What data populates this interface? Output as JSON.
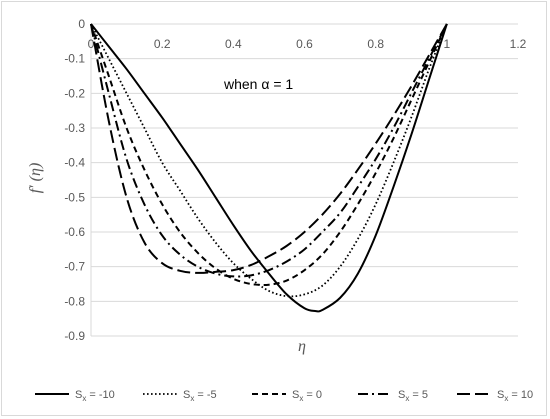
{
  "chart_data": {
    "type": "line",
    "title": "",
    "annotation": "when α = 1",
    "xlabel": "η",
    "ylabel": "f′ (η)",
    "xlim": [
      0,
      1.2
    ],
    "ylim": [
      -0.9,
      0
    ],
    "xticks": [
      "0",
      "0.2",
      "0.4",
      "0.6",
      "0.8",
      "1",
      "1.2"
    ],
    "yticks": [
      "0",
      "-0.1",
      "-0.2",
      "-0.3",
      "-0.4",
      "-0.5",
      "-0.6",
      "-0.7",
      "-0.8",
      "-0.9"
    ],
    "grid": "horizontal",
    "legend_position": "bottom",
    "series": [
      {
        "name": "Sx = -10",
        "style": "solid",
        "x": [
          0,
          0.05,
          0.1,
          0.15,
          0.2,
          0.25,
          0.3,
          0.35,
          0.4,
          0.45,
          0.5,
          0.55,
          0.6,
          0.63,
          0.65,
          0.7,
          0.75,
          0.8,
          0.85,
          0.9,
          0.95,
          1.0
        ],
        "y": [
          0,
          -0.065,
          -0.13,
          -0.2,
          -0.27,
          -0.345,
          -0.42,
          -0.5,
          -0.58,
          -0.655,
          -0.72,
          -0.78,
          -0.82,
          -0.828,
          -0.825,
          -0.79,
          -0.72,
          -0.61,
          -0.47,
          -0.32,
          -0.16,
          0
        ]
      },
      {
        "name": "Sx = -5",
        "style": "dotted",
        "x": [
          0,
          0.05,
          0.1,
          0.15,
          0.2,
          0.25,
          0.3,
          0.35,
          0.4,
          0.45,
          0.5,
          0.55,
          0.6,
          0.65,
          0.7,
          0.75,
          0.8,
          0.85,
          0.9,
          0.95,
          1.0
        ],
        "y": [
          0,
          -0.1,
          -0.2,
          -0.3,
          -0.4,
          -0.48,
          -0.56,
          -0.63,
          -0.69,
          -0.735,
          -0.77,
          -0.785,
          -0.78,
          -0.755,
          -0.7,
          -0.62,
          -0.52,
          -0.4,
          -0.27,
          -0.13,
          0
        ]
      },
      {
        "name": "Sx = 0",
        "style": "dashed",
        "x": [
          0,
          0.05,
          0.1,
          0.15,
          0.2,
          0.25,
          0.3,
          0.35,
          0.4,
          0.45,
          0.5,
          0.55,
          0.6,
          0.65,
          0.7,
          0.75,
          0.8,
          0.85,
          0.9,
          0.95,
          1.0
        ],
        "y": [
          0,
          -0.15,
          -0.3,
          -0.42,
          -0.52,
          -0.6,
          -0.66,
          -0.705,
          -0.735,
          -0.75,
          -0.752,
          -0.74,
          -0.71,
          -0.665,
          -0.6,
          -0.52,
          -0.43,
          -0.33,
          -0.22,
          -0.11,
          0
        ]
      },
      {
        "name": "Sx = 5",
        "style": "dashdot",
        "x": [
          0,
          0.05,
          0.1,
          0.15,
          0.2,
          0.25,
          0.3,
          0.35,
          0.4,
          0.45,
          0.5,
          0.55,
          0.6,
          0.65,
          0.7,
          0.75,
          0.8,
          0.85,
          0.9,
          0.95,
          1.0
        ],
        "y": [
          0,
          -0.2,
          -0.39,
          -0.52,
          -0.61,
          -0.665,
          -0.7,
          -0.72,
          -0.728,
          -0.725,
          -0.71,
          -0.685,
          -0.65,
          -0.6,
          -0.545,
          -0.47,
          -0.39,
          -0.3,
          -0.2,
          -0.1,
          0
        ]
      },
      {
        "name": "Sx = 10",
        "style": "longdash",
        "x": [
          0,
          0.05,
          0.1,
          0.15,
          0.2,
          0.25,
          0.3,
          0.35,
          0.4,
          0.45,
          0.5,
          0.55,
          0.6,
          0.65,
          0.7,
          0.75,
          0.8,
          0.85,
          0.9,
          0.95,
          1.0
        ],
        "y": [
          0,
          -0.28,
          -0.5,
          -0.63,
          -0.69,
          -0.712,
          -0.718,
          -0.715,
          -0.71,
          -0.695,
          -0.67,
          -0.64,
          -0.6,
          -0.55,
          -0.49,
          -0.42,
          -0.345,
          -0.265,
          -0.18,
          -0.09,
          0
        ]
      }
    ]
  },
  "legend": {
    "items": [
      {
        "prefix": "S",
        "sub": "x",
        "suffix": " = -10"
      },
      {
        "prefix": "S",
        "sub": "x",
        "suffix": " = -5"
      },
      {
        "prefix": "S",
        "sub": "x",
        "suffix": " = 0"
      },
      {
        "prefix": "S",
        "sub": "x",
        "suffix": " = 5"
      },
      {
        "prefix": "S",
        "sub": "x",
        "suffix": " = 10"
      }
    ]
  }
}
